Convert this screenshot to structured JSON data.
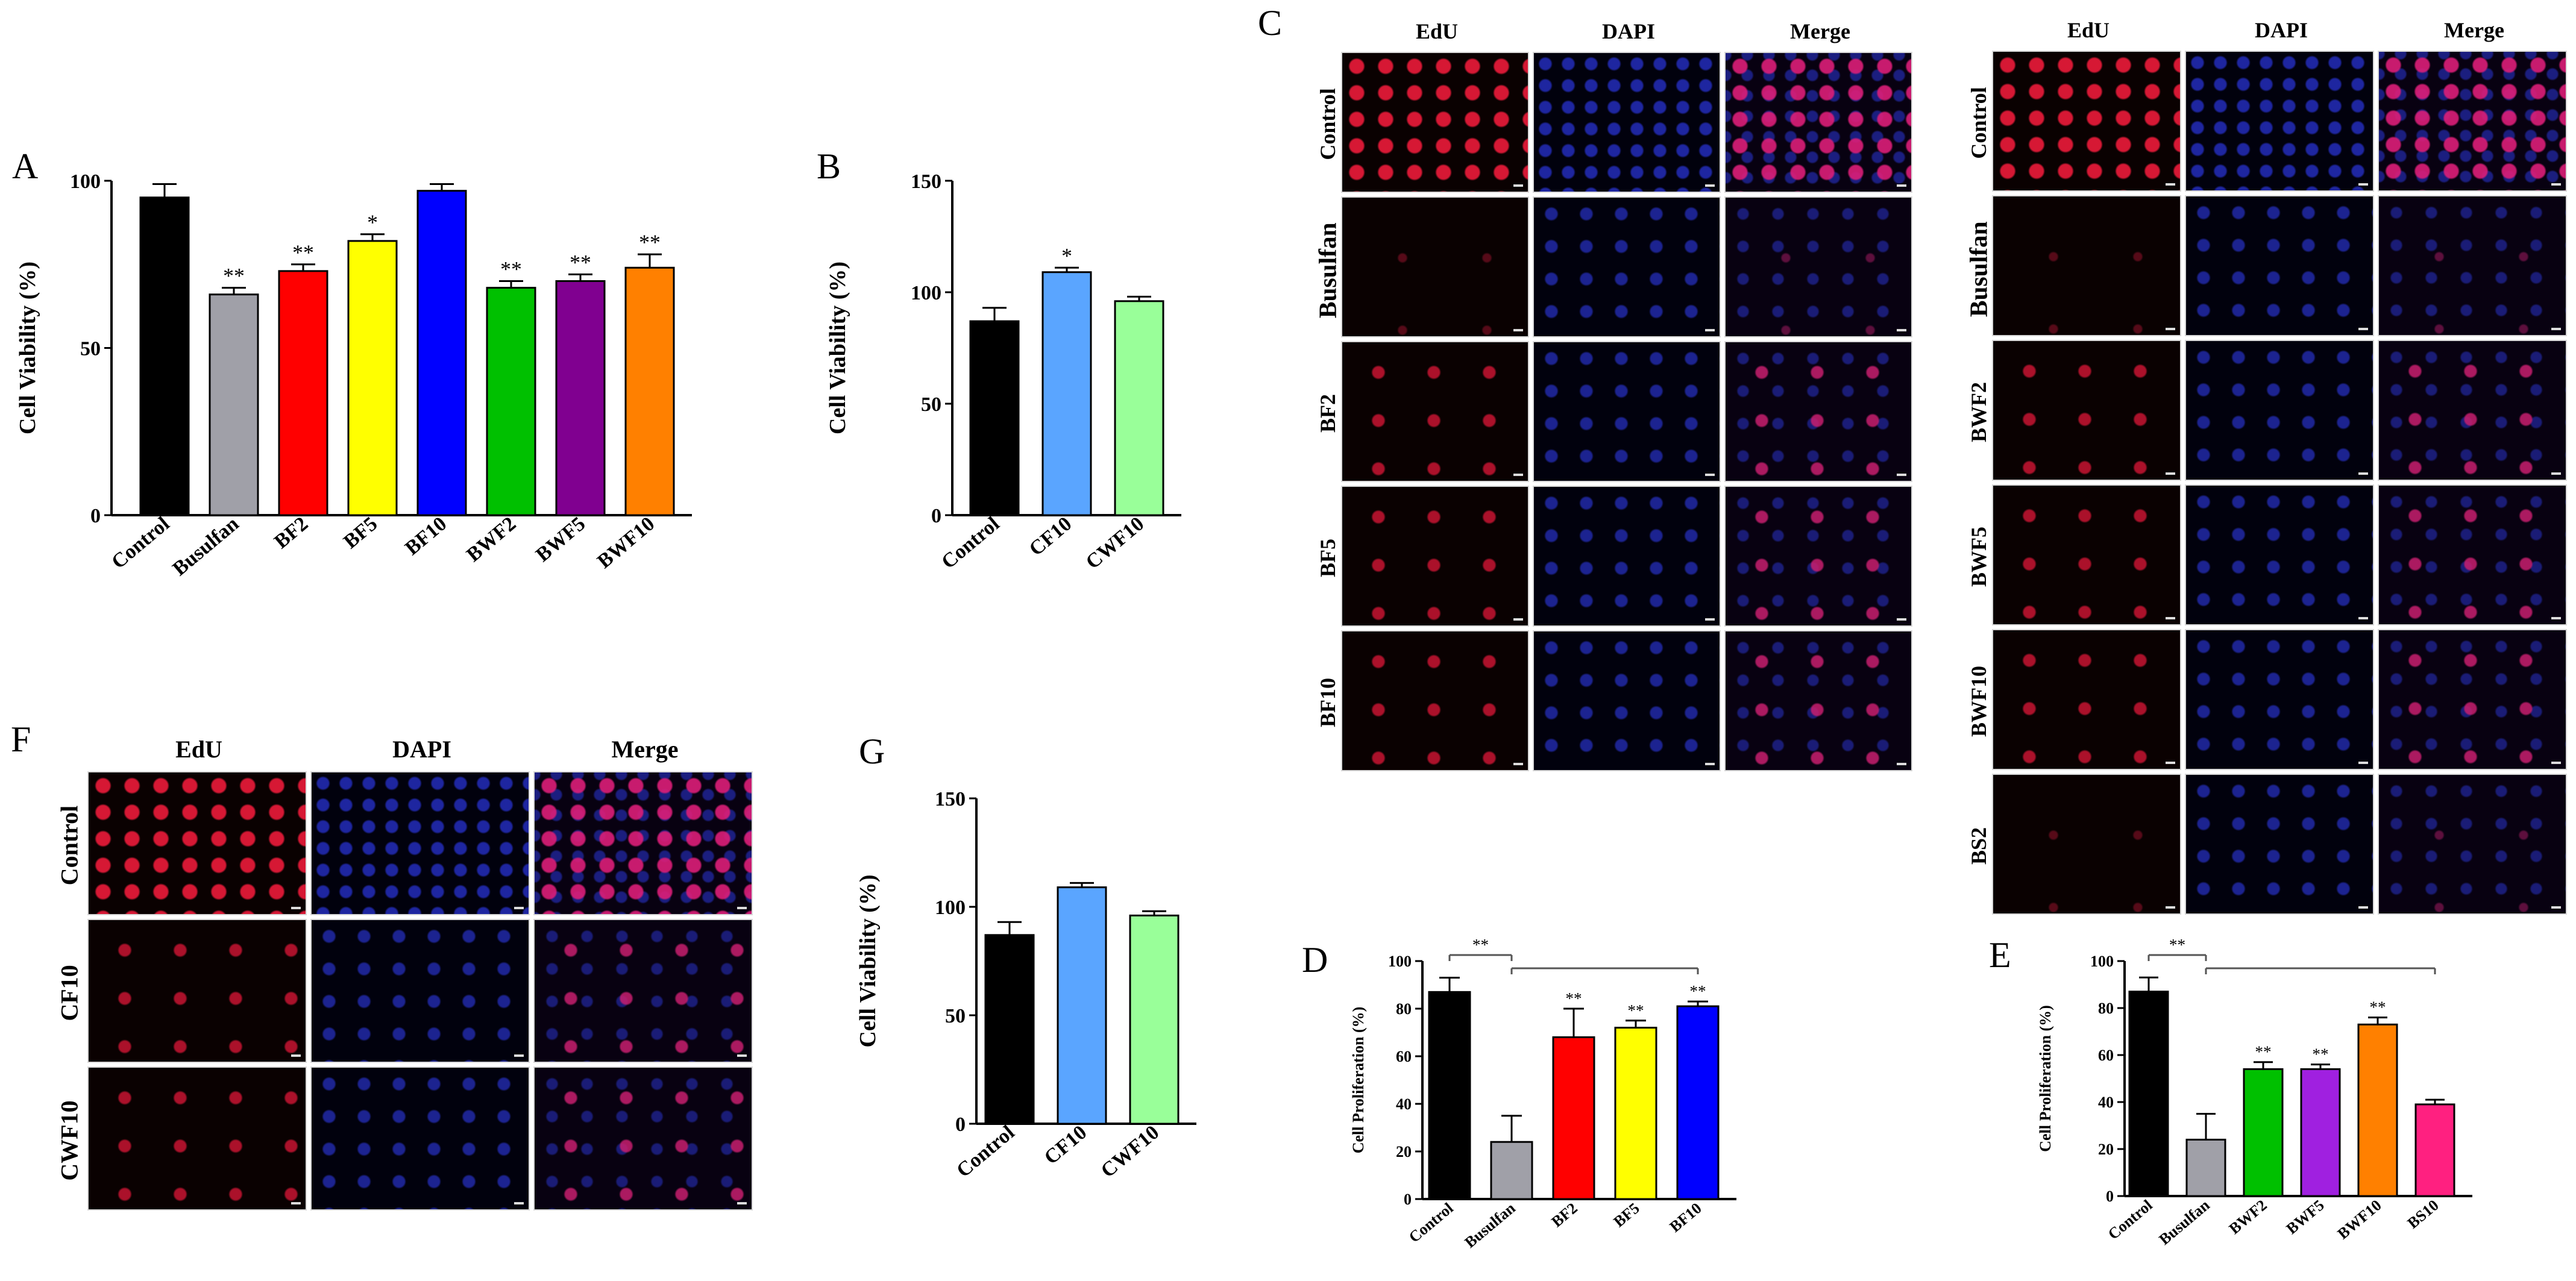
{
  "panels": {
    "A": {
      "letter": "A"
    },
    "B": {
      "letter": "B"
    },
    "C": {
      "letter": "C"
    },
    "D": {
      "letter": "D"
    },
    "E": {
      "letter": "E"
    },
    "F": {
      "letter": "F"
    },
    "G": {
      "letter": "G"
    }
  },
  "chart_data": [
    {
      "id": "A",
      "type": "bar",
      "ylabel": "Cell Viability (%)",
      "ylim": [
        0,
        100
      ],
      "yticks": [
        0,
        50,
        100
      ],
      "categories": [
        "Control",
        "Busulfan",
        "BF2",
        "BF5",
        "BF10",
        "BWF2",
        "BWF5",
        "BWF10"
      ],
      "values": [
        95,
        66,
        73,
        82,
        97,
        68,
        70,
        74
      ],
      "errors": [
        4,
        2,
        2,
        2,
        2,
        2,
        2,
        4
      ],
      "significance": [
        "",
        "**",
        "**",
        "*",
        "",
        "**",
        "**",
        "**"
      ],
      "colors": [
        "#000000",
        "#a0a0a8",
        "#ff0000",
        "#ffff00",
        "#0000ff",
        "#00c000",
        "#800090",
        "#ff8000"
      ]
    },
    {
      "id": "B",
      "type": "bar",
      "ylabel": "Cell Viability (%)",
      "ylim": [
        0,
        150
      ],
      "yticks": [
        0,
        50,
        100,
        150
      ],
      "categories": [
        "Control",
        "CF10",
        "CWF10"
      ],
      "values": [
        87,
        109,
        96
      ],
      "errors": [
        6,
        2,
        2
      ],
      "significance": [
        "",
        "*",
        ""
      ],
      "colors": [
        "#000000",
        "#5aa5ff",
        "#99ff99"
      ]
    },
    {
      "id": "G",
      "type": "bar",
      "ylabel": "Cell Viability (%)",
      "ylim": [
        0,
        150
      ],
      "yticks": [
        0,
        50,
        100,
        150
      ],
      "categories": [
        "Control",
        "CF10",
        "CWF10"
      ],
      "values": [
        87,
        109,
        96
      ],
      "errors": [
        6,
        2,
        2
      ],
      "significance": [
        "",
        "",
        ""
      ],
      "colors": [
        "#000000",
        "#5aa5ff",
        "#99ff99"
      ]
    },
    {
      "id": "D",
      "type": "bar",
      "ylabel": "Cell Proliferation (%)",
      "ylim": [
        0,
        100
      ],
      "yticks": [
        0,
        20,
        40,
        60,
        80,
        100
      ],
      "categories": [
        "Control",
        "Busulfan",
        "BF2",
        "BF5",
        "BF10"
      ],
      "values": [
        87,
        24,
        68,
        72,
        81
      ],
      "errors": [
        6,
        11,
        12,
        3,
        2
      ],
      "significance": [
        "",
        "",
        "**",
        "**",
        "**"
      ],
      "brackets": [
        {
          "from": "Control",
          "to": "Busulfan",
          "label": "**"
        },
        {
          "from": "Busulfan",
          "to": "BF10",
          "label": ""
        }
      ],
      "colors": [
        "#000000",
        "#a0a0a8",
        "#ff0000",
        "#ffff00",
        "#0000ff"
      ]
    },
    {
      "id": "E",
      "type": "bar",
      "ylabel": "Cell Proliferation (%)",
      "ylim": [
        0,
        100
      ],
      "yticks": [
        0,
        20,
        40,
        60,
        80,
        100
      ],
      "categories": [
        "Control",
        "Busulfan",
        "BWF2",
        "BWF5",
        "BWF10",
        "BS10"
      ],
      "values": [
        87,
        24,
        54,
        54,
        73,
        39
      ],
      "errors": [
        6,
        11,
        3,
        2,
        3,
        2
      ],
      "significance": [
        "",
        "",
        "**",
        "**",
        "**",
        ""
      ],
      "brackets": [
        {
          "from": "Control",
          "to": "Busulfan",
          "label": "**"
        },
        {
          "from": "Busulfan",
          "to": "BS10",
          "label": ""
        }
      ],
      "colors": [
        "#000000",
        "#a0a0a8",
        "#00c000",
        "#a020e0",
        "#ff8000",
        "#ff2080"
      ]
    }
  ],
  "microscopy": {
    "channels": [
      "EdU",
      "DAPI",
      "Merge"
    ],
    "C_left_rows": [
      "Control",
      "Busulfan",
      "BF2",
      "BF5",
      "BF10"
    ],
    "C_right_rows": [
      "Control",
      "Busulfan",
      "BWF2",
      "BWF5",
      "BWF10",
      "BS2"
    ],
    "F_rows": [
      "Control",
      "CF10",
      "CWF10"
    ]
  }
}
